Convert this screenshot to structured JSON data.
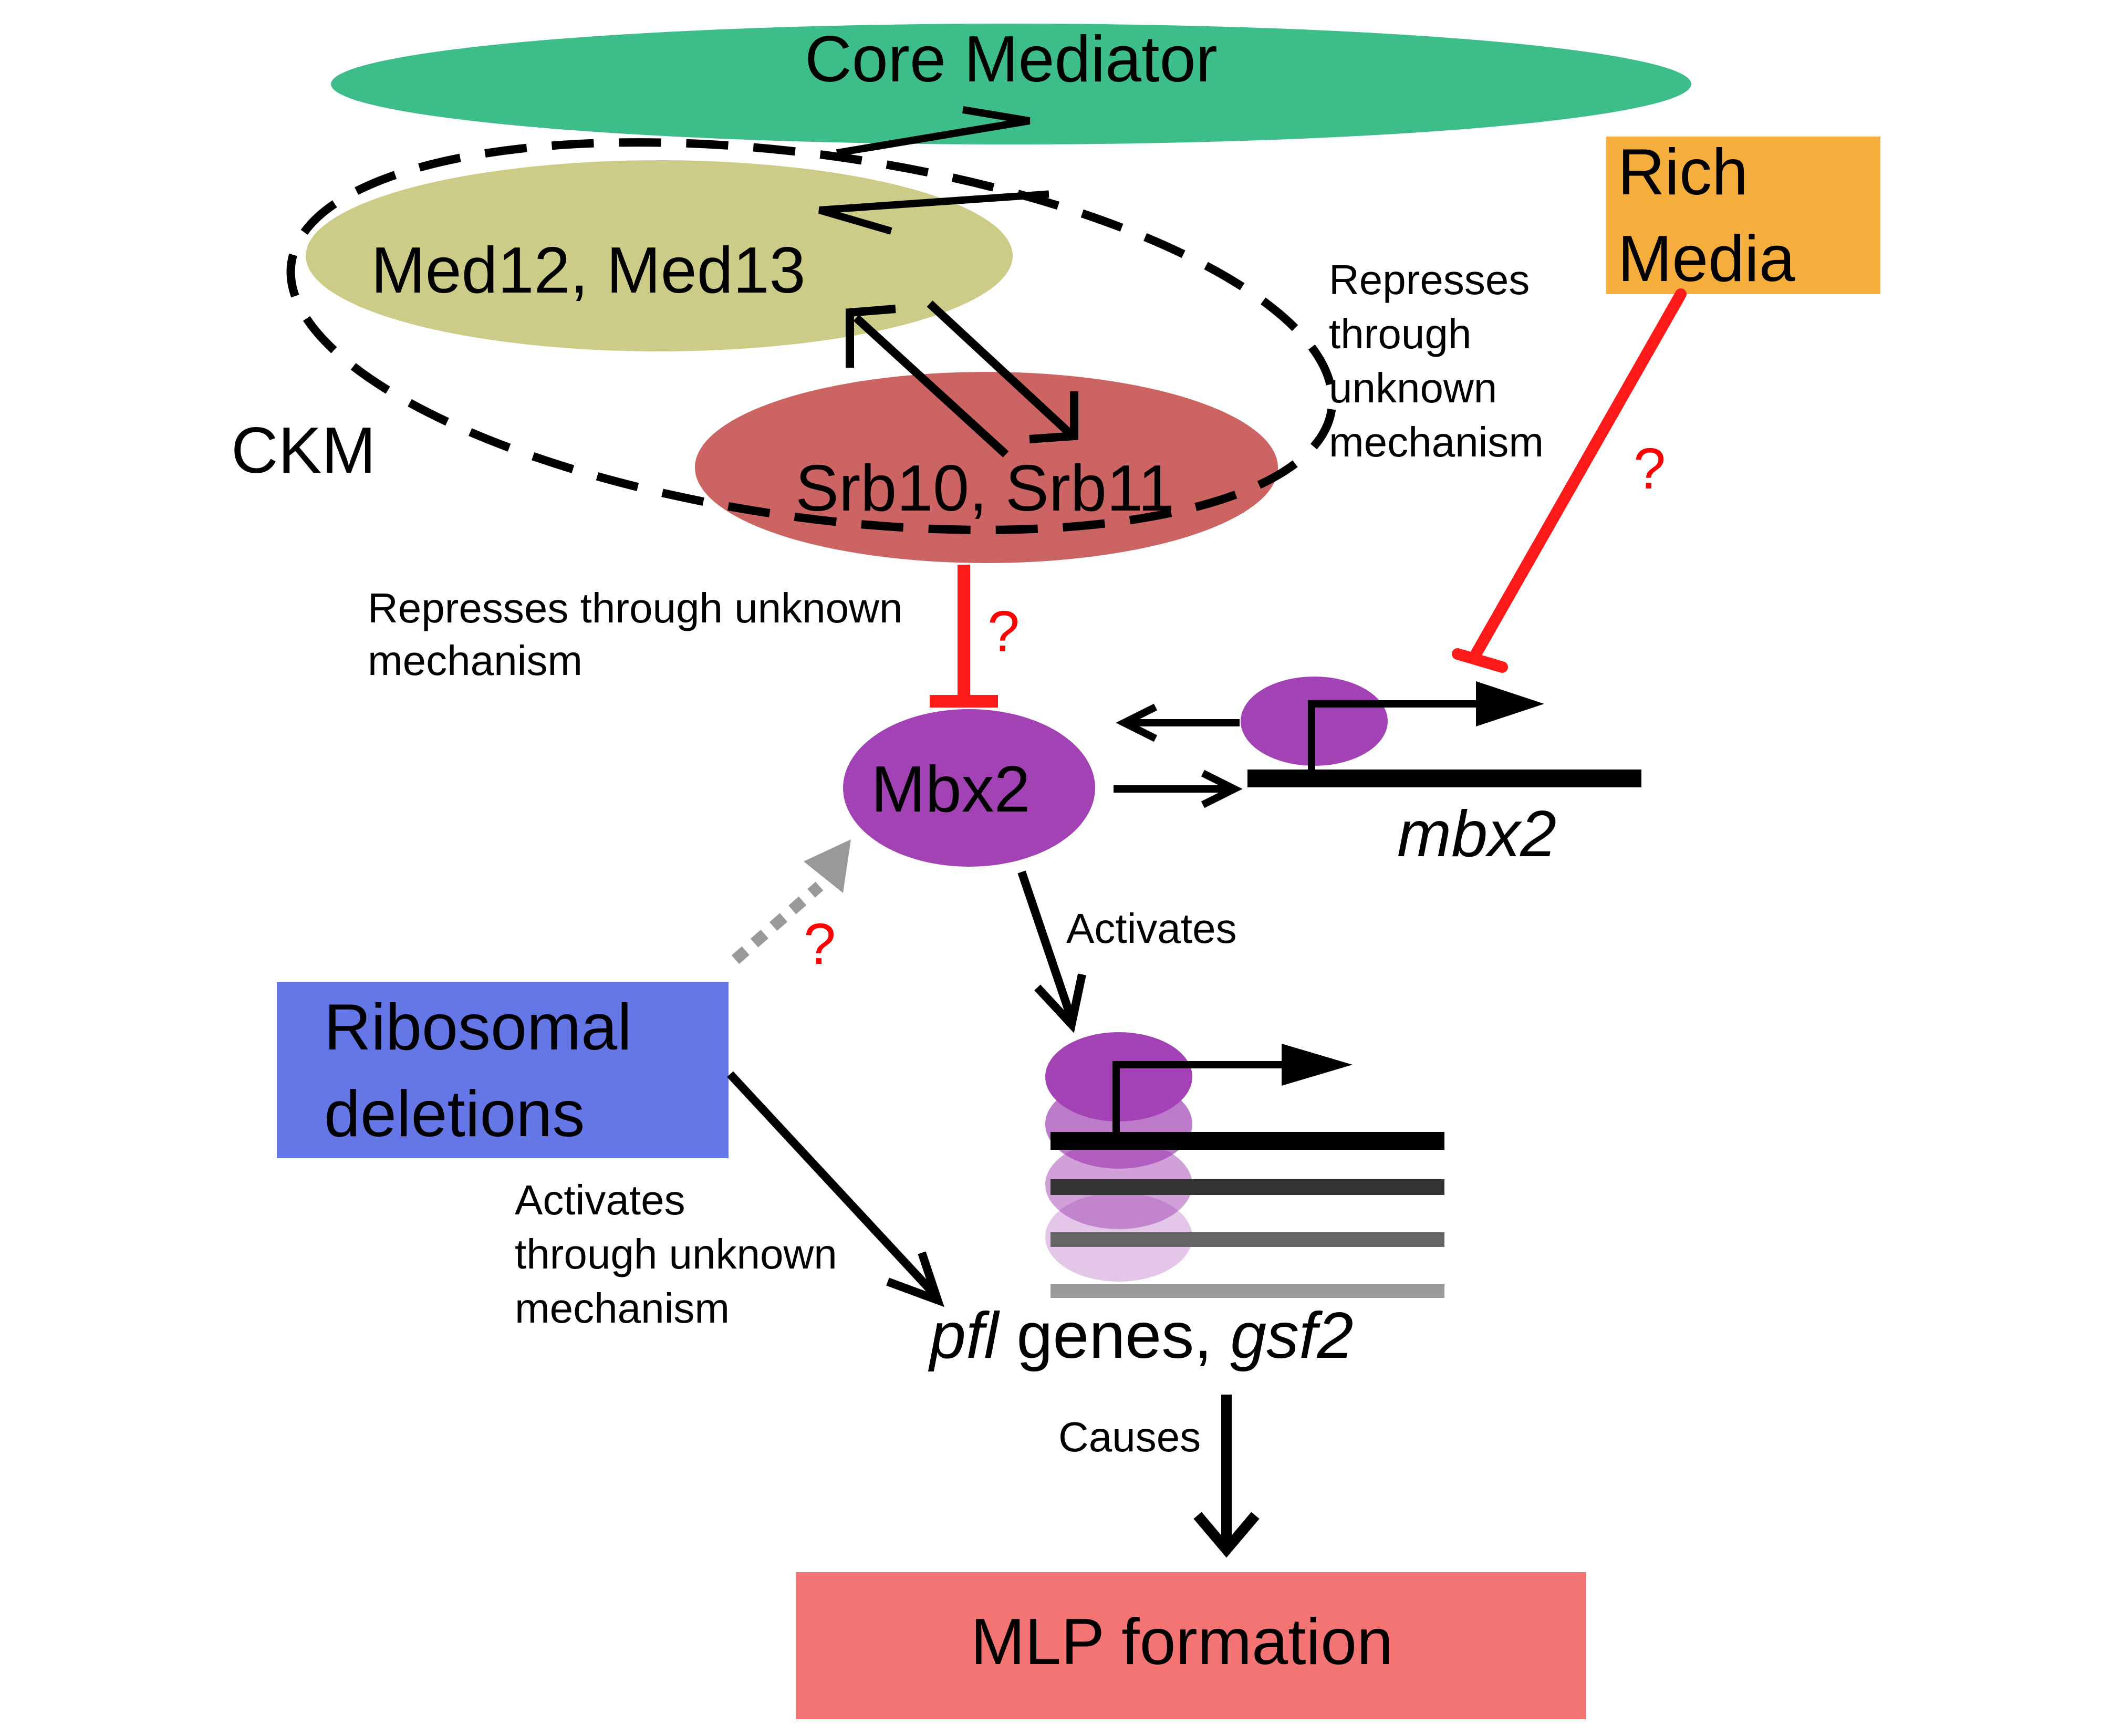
{
  "colors": {
    "core_mediator": "#3dbd8a",
    "med12_med13": "#cccc88",
    "srb10_srb11": "#cd6464",
    "rich_media": "#f5ae3c",
    "mbx2": "#a342b4",
    "ribosomal": "#6577e6",
    "mlp": "#f47373",
    "repress": "#ff1a1a",
    "arrow": "#000000",
    "uncertain": "#999999",
    "question": "#ff0000"
  },
  "nodes": {
    "core_mediator": "Core Mediator",
    "med12_med13": "Med12, Med13",
    "srb10_srb11": "Srb10, Srb11",
    "ckm": "CKM",
    "rich_media": [
      "Rich",
      "Media"
    ],
    "mbx2": "Mbx2",
    "mbx2_gene": "mbx2",
    "ribosomal": [
      "Ribosomal",
      "deletions"
    ],
    "target_genes": {
      "pfl": "pfl",
      "genes": " genes, ",
      "gsf2": "gsf2"
    },
    "mlp": "MLP formation"
  },
  "edge_labels": {
    "rich_media_repress": [
      "Represses",
      "through",
      "unknown",
      "mechanism"
    ],
    "srb_repress": [
      "Represses through unknown",
      "mechanism"
    ],
    "mbx2_activates": "Activates",
    "ribosomal_activates": [
      "Activates",
      "through unknown",
      "mechanism"
    ],
    "causes": "Causes",
    "question_mark": "?"
  },
  "icons": {
    "promoter": "bent-arrow-icon",
    "repression": "t-bar-inhibition-icon"
  }
}
